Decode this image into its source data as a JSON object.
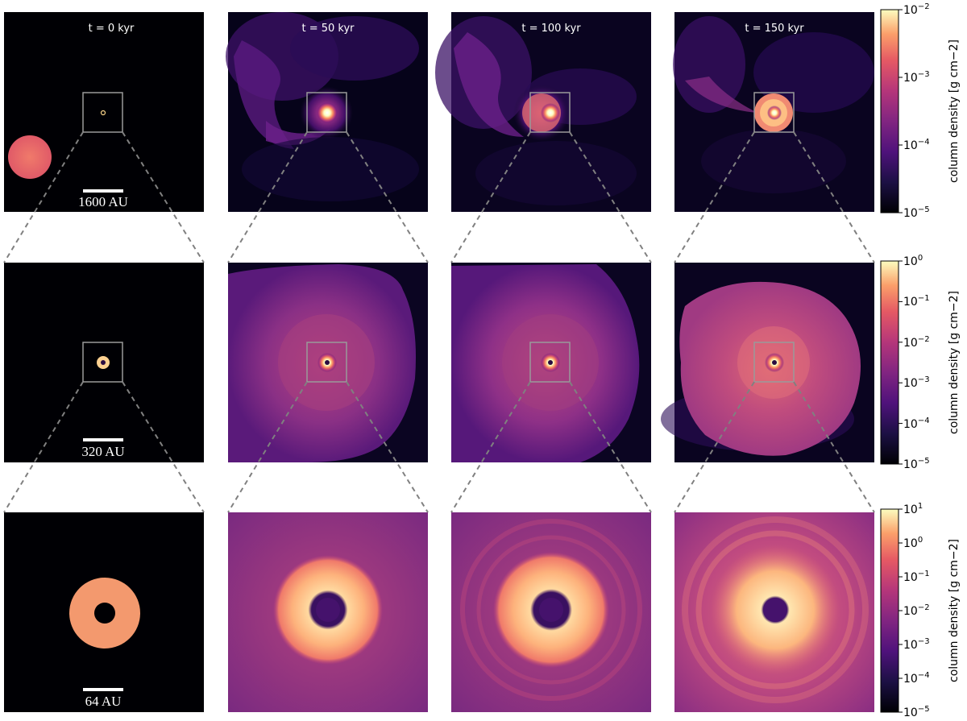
{
  "figure": {
    "columns": [
      {
        "time_label": "t = 0 kyr"
      },
      {
        "time_label": "t = 50 kyr"
      },
      {
        "time_label": "t = 100 kyr"
      },
      {
        "time_label": "t = 150 kyr"
      }
    ],
    "rows": [
      {
        "scale_bar": "1600 AU",
        "colorbar": {
          "label": "column density [g cm−2]",
          "ticks": [
            {
              "mantissa": "10",
              "exponent": "−2"
            },
            {
              "mantissa": "10",
              "exponent": "−3"
            },
            {
              "mantissa": "10",
              "exponent": "−4"
            },
            {
              "mantissa": "10",
              "exponent": "−5"
            }
          ]
        }
      },
      {
        "scale_bar": "320 AU",
        "colorbar": {
          "label": "column density [g cm−2]",
          "ticks": [
            {
              "mantissa": "10",
              "exponent": "0"
            },
            {
              "mantissa": "10",
              "exponent": "−1"
            },
            {
              "mantissa": "10",
              "exponent": "−2"
            },
            {
              "mantissa": "10",
              "exponent": "−3"
            },
            {
              "mantissa": "10",
              "exponent": "−4"
            },
            {
              "mantissa": "10",
              "exponent": "−5"
            }
          ]
        }
      },
      {
        "scale_bar": "64 AU",
        "colorbar": {
          "label": "column density [g cm−2]",
          "ticks": [
            {
              "mantissa": "10",
              "exponent": "1"
            },
            {
              "mantissa": "10",
              "exponent": "0"
            },
            {
              "mantissa": "10",
              "exponent": "−1"
            },
            {
              "mantissa": "10",
              "exponent": "−2"
            },
            {
              "mantissa": "10",
              "exponent": "−3"
            },
            {
              "mantissa": "10",
              "exponent": "−4"
            },
            {
              "mantissa": "10",
              "exponent": "−5"
            }
          ]
        }
      }
    ],
    "colormap": "magma"
  }
}
